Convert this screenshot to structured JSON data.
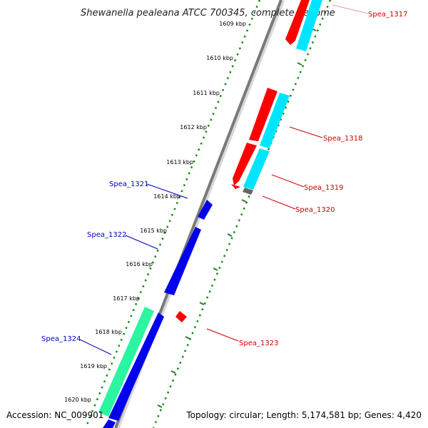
{
  "title": "Shewanella pealeana ATCC 700345, complete genome",
  "footer": {
    "accession": "Accession: NC_009901",
    "summary": "Topology: circular; Length: 5,174,581 bp; Genes: 4,420"
  },
  "ticks": [
    "1609 kbp",
    "1610 kbp",
    "1611 kbp",
    "1612 kbp",
    "1613 kbp",
    "1614 kbp",
    "1615 kbp",
    "1616 kbp",
    "1617 kbp",
    "1618 kbp",
    "1619 kbp",
    "1620 kbp"
  ],
  "genes": [
    {
      "label": "Spea_1317",
      "strand": "forward"
    },
    {
      "label": "Spea_1318",
      "strand": "forward"
    },
    {
      "label": "Spea_1319",
      "strand": "forward"
    },
    {
      "label": "Spea_1320",
      "strand": "forward"
    },
    {
      "label": "Spea_1321",
      "strand": "reverse"
    },
    {
      "label": "Spea_1322",
      "strand": "reverse"
    },
    {
      "label": "Spea_1323",
      "strand": "forward"
    },
    {
      "label": "Spea_1324",
      "strand": "reverse"
    }
  ],
  "colors": {
    "forward_cds": "#ff0000",
    "reverse_cds": "#0000ee",
    "forward_aux": "#00e5ff",
    "reverse_aux": "#2af5a0",
    "backbone": "#888888",
    "dotted_ring": "#138a13",
    "forward_label": "#cc0000",
    "reverse_label": "#0000bb"
  }
}
